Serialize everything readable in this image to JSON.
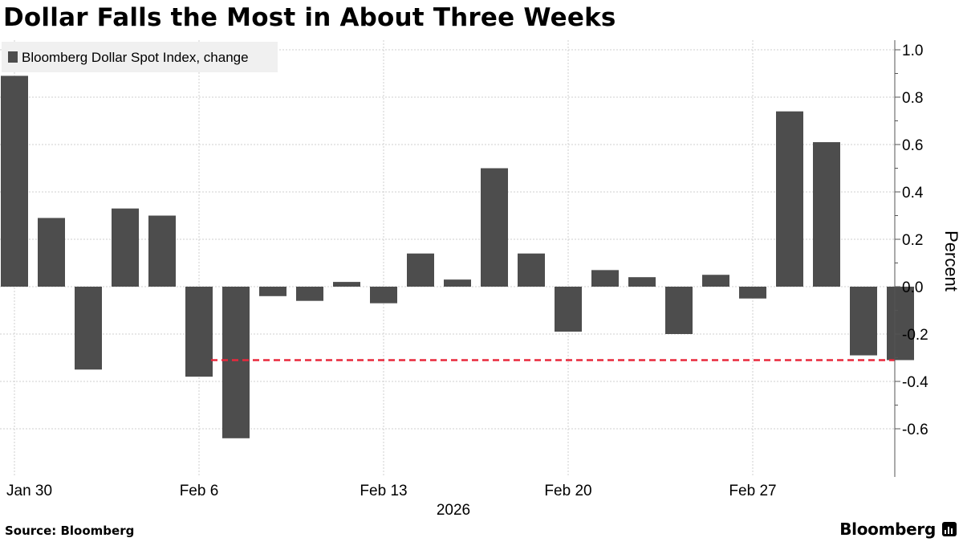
{
  "title": "Dollar Falls the Most in About Three Weeks",
  "source": "Source: Bloomberg",
  "brand": "Bloomberg",
  "brand_icon": "bloomberg-terminal-icon",
  "colors": {
    "bar": "#4d4d4d",
    "reference_line": "#e8283c",
    "grid": "#cfcfcf",
    "legend_bg": "#f0f0f0",
    "axis": "#555555"
  },
  "chart_data": {
    "type": "bar",
    "legend": "Bloomberg Dollar Spot Index, change",
    "legend_position": "top-left",
    "ylabel": "Percent",
    "xlabel": "2026",
    "ylim": [
      -0.72,
      1.05
    ],
    "yticks": [
      -0.6,
      -0.4,
      -0.2,
      0.0,
      0.2,
      0.4,
      0.6,
      0.8,
      1.0
    ],
    "ytick_labels": [
      "-0.6",
      "-0.4",
      "-0.2",
      "0.0",
      "0.2",
      "0.4",
      "0.6",
      "0.8",
      "1.0"
    ],
    "x": [
      "2026-01-30",
      "2026-02-02",
      "2026-02-03",
      "2026-02-04",
      "2026-02-05",
      "2026-02-06",
      "2026-02-09",
      "2026-02-10",
      "2026-02-11",
      "2026-02-12",
      "2026-02-13",
      "2026-02-16",
      "2026-02-17",
      "2026-02-18",
      "2026-02-19",
      "2026-02-20",
      "2026-02-23",
      "2026-02-24",
      "2026-02-25",
      "2026-02-26",
      "2026-02-27",
      "2026-03-02",
      "2026-03-03",
      "2026-03-04",
      "2026-03-05"
    ],
    "values": [
      0.89,
      0.29,
      -0.35,
      0.33,
      0.3,
      -0.38,
      -0.64,
      -0.04,
      -0.06,
      0.02,
      -0.07,
      0.14,
      0.03,
      0.5,
      0.14,
      -0.19,
      0.07,
      0.04,
      -0.2,
      0.05,
      -0.05,
      0.74,
      0.61,
      -0.29,
      -0.31
    ],
    "x_tick_labels": [
      "Jan 30",
      "Feb 6",
      "Feb 13",
      "Feb 20",
      "Feb 27"
    ],
    "x_tick_positions": [
      "2026-01-30",
      "2026-02-06",
      "2026-02-13",
      "2026-02-20",
      "2026-02-27"
    ],
    "reference_line": {
      "value": -0.31,
      "from": "2026-02-06",
      "to": "2026-03-04",
      "style": "dashed"
    },
    "grid": true,
    "yaxis_side": "right"
  }
}
